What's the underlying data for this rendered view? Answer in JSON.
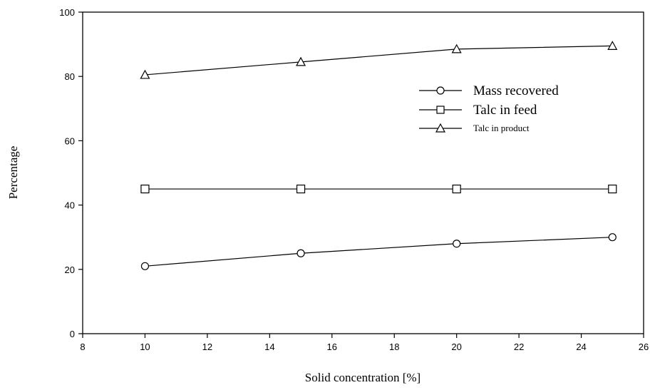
{
  "chart_data": {
    "type": "line",
    "title": "",
    "xlabel": "Solid concentration  [%]",
    "ylabel": "Percentage",
    "xlim": [
      8,
      26
    ],
    "ylim": [
      0,
      100
    ],
    "xticks": [
      8,
      10,
      12,
      14,
      16,
      18,
      20,
      22,
      24,
      26
    ],
    "yticks": [
      0,
      20,
      40,
      60,
      80,
      100
    ],
    "grid": false,
    "legend_position": "center-right",
    "x": [
      10,
      15,
      20,
      25
    ],
    "series": [
      {
        "name": "Mass recovered",
        "marker": "circle",
        "values": [
          21,
          25,
          28,
          30
        ]
      },
      {
        "name": "Talc in feed",
        "marker": "square",
        "values": [
          45,
          45,
          45,
          45
        ]
      },
      {
        "name": "Talc in product",
        "marker": "triangle",
        "values": [
          80.5,
          84.5,
          88.5,
          89.5
        ]
      }
    ]
  }
}
